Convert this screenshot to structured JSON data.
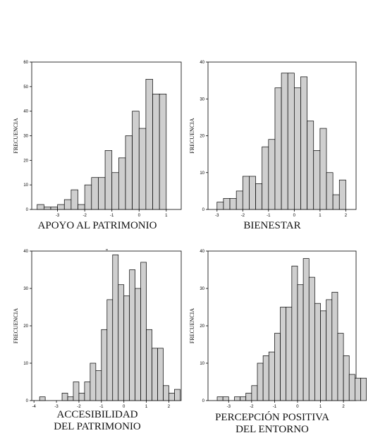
{
  "chart_data": [
    {
      "type": "bar",
      "title": "APOYO AL PATRIMONIO",
      "xlabel": "",
      "ylabel": "FRECUENCIA",
      "ylim": [
        0,
        60
      ],
      "yticks": [
        "0",
        "10",
        "20",
        "30",
        "40",
        "50",
        "60"
      ],
      "xticks": [
        "-3",
        "-2",
        "-1",
        "0",
        "1"
      ],
      "bins_start": -3.75,
      "bin_width": 0.25,
      "values": [
        2,
        1,
        1,
        2,
        4,
        8,
        2,
        10,
        13,
        13,
        24,
        15,
        21,
        30,
        40,
        33,
        53,
        47,
        47
      ]
    },
    {
      "type": "bar",
      "title": "BIENESTAR",
      "xlabel": "",
      "ylabel": "FRECUENCIA",
      "ylim": [
        0,
        40
      ],
      "yticks": [
        "0",
        "10",
        "20",
        "30",
        "40"
      ],
      "xticks": [
        "-3",
        "-2",
        "-1",
        "0",
        "1",
        "2"
      ],
      "bins_start": -3,
      "bin_width": 0.25,
      "values": [
        2,
        3,
        3,
        5,
        9,
        9,
        7,
        17,
        19,
        33,
        37,
        37,
        33,
        36,
        24,
        16,
        22,
        10,
        4,
        8
      ]
    },
    {
      "type": "bar",
      "title_lines": [
        "ACCESIBILIDAD",
        "DEL PATRIMONIO"
      ],
      "xlabel": "",
      "ylabel": "FRECUENCIA",
      "ylim": [
        0,
        40
      ],
      "yticks": [
        "0",
        "10",
        "20",
        "30",
        "40"
      ],
      "xticks": [
        "-4",
        "-3",
        "-2",
        "-1",
        "0",
        "1",
        "2"
      ],
      "bins_start": -3.75,
      "bin_width": 0.25,
      "values": [
        1,
        0,
        0,
        0,
        2,
        1,
        5,
        2,
        5,
        10,
        8,
        19,
        27,
        39,
        31,
        28,
        35,
        30,
        37,
        19,
        14,
        14,
        4,
        2,
        3
      ]
    },
    {
      "type": "bar",
      "title_lines": [
        "PERCEPCIÓN POSITIVA",
        "DEL ENTORNO"
      ],
      "xlabel": "",
      "ylabel": "FRECUENCIA",
      "ylim": [
        0,
        40
      ],
      "yticks": [
        "0",
        "10",
        "20",
        "30",
        "40"
      ],
      "xticks": [
        "-3",
        "-2",
        "-1",
        "0",
        "1",
        "2"
      ],
      "bins_start": -3.5,
      "bin_width": 0.25,
      "values": [
        1,
        1,
        0,
        1,
        1,
        2,
        4,
        10,
        12,
        13,
        18,
        25,
        25,
        36,
        31,
        38,
        33,
        26,
        24,
        27,
        29,
        18,
        12,
        7,
        6,
        6
      ]
    }
  ]
}
